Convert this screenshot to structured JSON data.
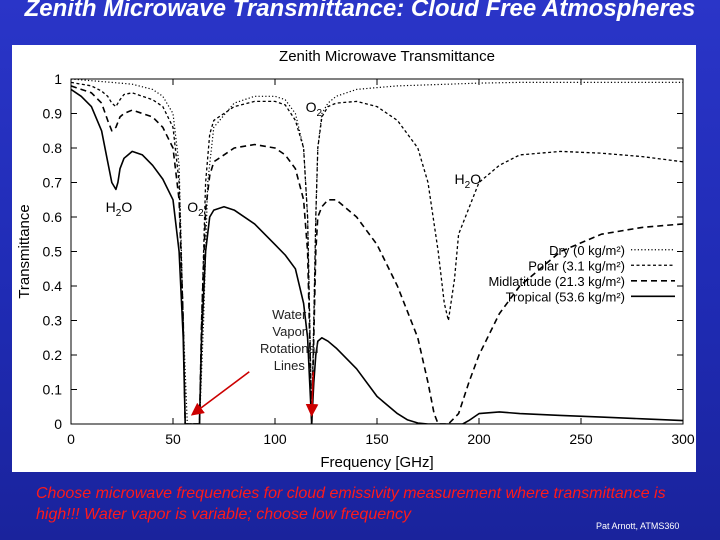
{
  "slide": {
    "title": "Zenith Microwave Transmittance: Cloud Free Atmospheres",
    "caption": "Choose microwave frequencies for cloud emissivity measurement where transmittance is high!!! Water vapor is variable; choose low frequency",
    "credit": "Pat Arnott, ATMS360"
  },
  "chart_data": {
    "type": "line",
    "title": "Zenith Microwave Transmittance",
    "xlabel": "Frequency [GHz]",
    "ylabel": "Transmittance",
    "xlim": [
      0,
      300
    ],
    "ylim": [
      0,
      1
    ],
    "xticks": [
      "0",
      "50",
      "100",
      "150",
      "200",
      "250",
      "300"
    ],
    "yticks": [
      "0",
      "0.1",
      "0.2",
      "0.3",
      "0.4",
      "0.5",
      "0.6",
      "0.7",
      "0.8",
      "0.9",
      "1"
    ],
    "grid": false,
    "legend_position": "right",
    "series": [
      {
        "name": "Dry (0 kg/m²)",
        "style": "dotted",
        "x": [
          0,
          10,
          20,
          30,
          40,
          45,
          50,
          53,
          55,
          57,
          58,
          60,
          62,
          63,
          65,
          67,
          70,
          80,
          90,
          100,
          105,
          110,
          114,
          116,
          117,
          118,
          119,
          120,
          121,
          123,
          126,
          130,
          140,
          150,
          160,
          170,
          180,
          185,
          190,
          200,
          220,
          250,
          280,
          300
        ],
        "y": [
          1.0,
          0.995,
          0.99,
          0.985,
          0.97,
          0.95,
          0.9,
          0.75,
          0.3,
          0.0,
          0.0,
          0.0,
          0.0,
          0.0,
          0.3,
          0.7,
          0.86,
          0.93,
          0.95,
          0.95,
          0.94,
          0.9,
          0.8,
          0.6,
          0.3,
          0.0,
          0.3,
          0.6,
          0.8,
          0.9,
          0.93,
          0.95,
          0.97,
          0.975,
          0.98,
          0.982,
          0.984,
          0.985,
          0.986,
          0.988,
          0.99,
          0.99,
          0.99,
          0.99
        ]
      },
      {
        "name": "Polar (3.1 kg/m²)",
        "style": "short-dashed",
        "x": [
          0,
          10,
          15,
          18,
          20,
          22,
          24,
          26,
          30,
          40,
          45,
          50,
          53,
          55,
          56,
          63,
          64,
          66,
          68,
          70,
          80,
          90,
          100,
          105,
          110,
          114,
          116,
          117,
          118,
          119,
          120,
          121,
          123,
          126,
          130,
          140,
          150,
          160,
          170,
          175,
          180,
          183,
          185,
          188,
          190,
          200,
          210,
          220,
          240,
          260,
          280,
          300
        ],
        "y": [
          0.99,
          0.98,
          0.965,
          0.95,
          0.93,
          0.92,
          0.94,
          0.955,
          0.96,
          0.94,
          0.92,
          0.86,
          0.7,
          0.3,
          0.0,
          0.0,
          0.3,
          0.7,
          0.84,
          0.88,
          0.92,
          0.935,
          0.935,
          0.925,
          0.88,
          0.8,
          0.6,
          0.3,
          0.0,
          0.3,
          0.6,
          0.8,
          0.89,
          0.92,
          0.93,
          0.935,
          0.92,
          0.88,
          0.8,
          0.7,
          0.5,
          0.35,
          0.3,
          0.42,
          0.55,
          0.7,
          0.75,
          0.78,
          0.79,
          0.785,
          0.775,
          0.76
        ]
      },
      {
        "name": "Midlatitude (21.3 kg/m²)",
        "style": "dashed",
        "x": [
          0,
          10,
          15,
          18,
          20,
          22,
          24,
          26,
          30,
          40,
          45,
          50,
          53,
          55,
          56,
          63,
          64,
          66,
          68,
          70,
          80,
          90,
          100,
          105,
          110,
          114,
          116,
          117,
          118,
          119,
          120,
          121,
          123,
          126,
          130,
          140,
          150,
          160,
          170,
          175,
          178,
          180,
          183,
          185,
          190,
          195,
          200,
          210,
          220,
          240,
          260,
          280,
          300
        ],
        "y": [
          0.98,
          0.96,
          0.93,
          0.88,
          0.85,
          0.86,
          0.89,
          0.9,
          0.91,
          0.89,
          0.86,
          0.8,
          0.65,
          0.3,
          0.0,
          0.0,
          0.3,
          0.62,
          0.72,
          0.76,
          0.8,
          0.81,
          0.8,
          0.78,
          0.74,
          0.65,
          0.5,
          0.25,
          0.0,
          0.25,
          0.5,
          0.6,
          0.63,
          0.65,
          0.65,
          0.6,
          0.52,
          0.4,
          0.25,
          0.12,
          0.03,
          0.0,
          0.0,
          0.0,
          0.03,
          0.12,
          0.2,
          0.32,
          0.4,
          0.5,
          0.55,
          0.57,
          0.58
        ]
      },
      {
        "name": "Tropical (53.6 kg/m²)",
        "style": "solid",
        "x": [
          0,
          5,
          10,
          15,
          18,
          20,
          22,
          23,
          24,
          26,
          30,
          35,
          40,
          45,
          50,
          53,
          55,
          56,
          63,
          64,
          66,
          68,
          70,
          75,
          80,
          90,
          100,
          105,
          110,
          114,
          116,
          117,
          118,
          119,
          120,
          121,
          123,
          126,
          130,
          140,
          150,
          160,
          165,
          170,
          175,
          180,
          185,
          190,
          192,
          195,
          200,
          210,
          220,
          240,
          260,
          280,
          300
        ],
        "y": [
          0.97,
          0.95,
          0.92,
          0.85,
          0.76,
          0.7,
          0.68,
          0.7,
          0.74,
          0.77,
          0.79,
          0.78,
          0.75,
          0.71,
          0.65,
          0.5,
          0.25,
          0.0,
          0.0,
          0.25,
          0.5,
          0.6,
          0.62,
          0.63,
          0.62,
          0.58,
          0.52,
          0.49,
          0.45,
          0.35,
          0.25,
          0.12,
          0.0,
          0.12,
          0.2,
          0.24,
          0.25,
          0.24,
          0.22,
          0.16,
          0.08,
          0.03,
          0.012,
          0.003,
          0.0,
          0.0,
          0.0,
          0.0,
          0.0,
          0.01,
          0.03,
          0.035,
          0.03,
          0.025,
          0.02,
          0.015,
          0.01
        ]
      }
    ],
    "annotations": [
      {
        "label": "O",
        "sub": "2",
        "x": 115,
        "y": 0.905
      },
      {
        "label": "H",
        "sub": "2",
        "tail": "O",
        "x": 188,
        "y": 0.695
      },
      {
        "label": "H",
        "sub": "2",
        "tail": "O",
        "x": 17,
        "y": 0.615
      },
      {
        "label": "O",
        "sub": "2",
        "x": 57,
        "y": 0.615
      }
    ],
    "arrow_note": {
      "lines": [
        "Water",
        "Vapor",
        "Rotational",
        "Lines"
      ],
      "x": 107,
      "y": 0.305,
      "arrow_color": "#cc0000",
      "arrows_to": [
        {
          "x": 60,
          "y": 0.03
        },
        {
          "x": 118,
          "y": 0.03
        }
      ]
    }
  }
}
